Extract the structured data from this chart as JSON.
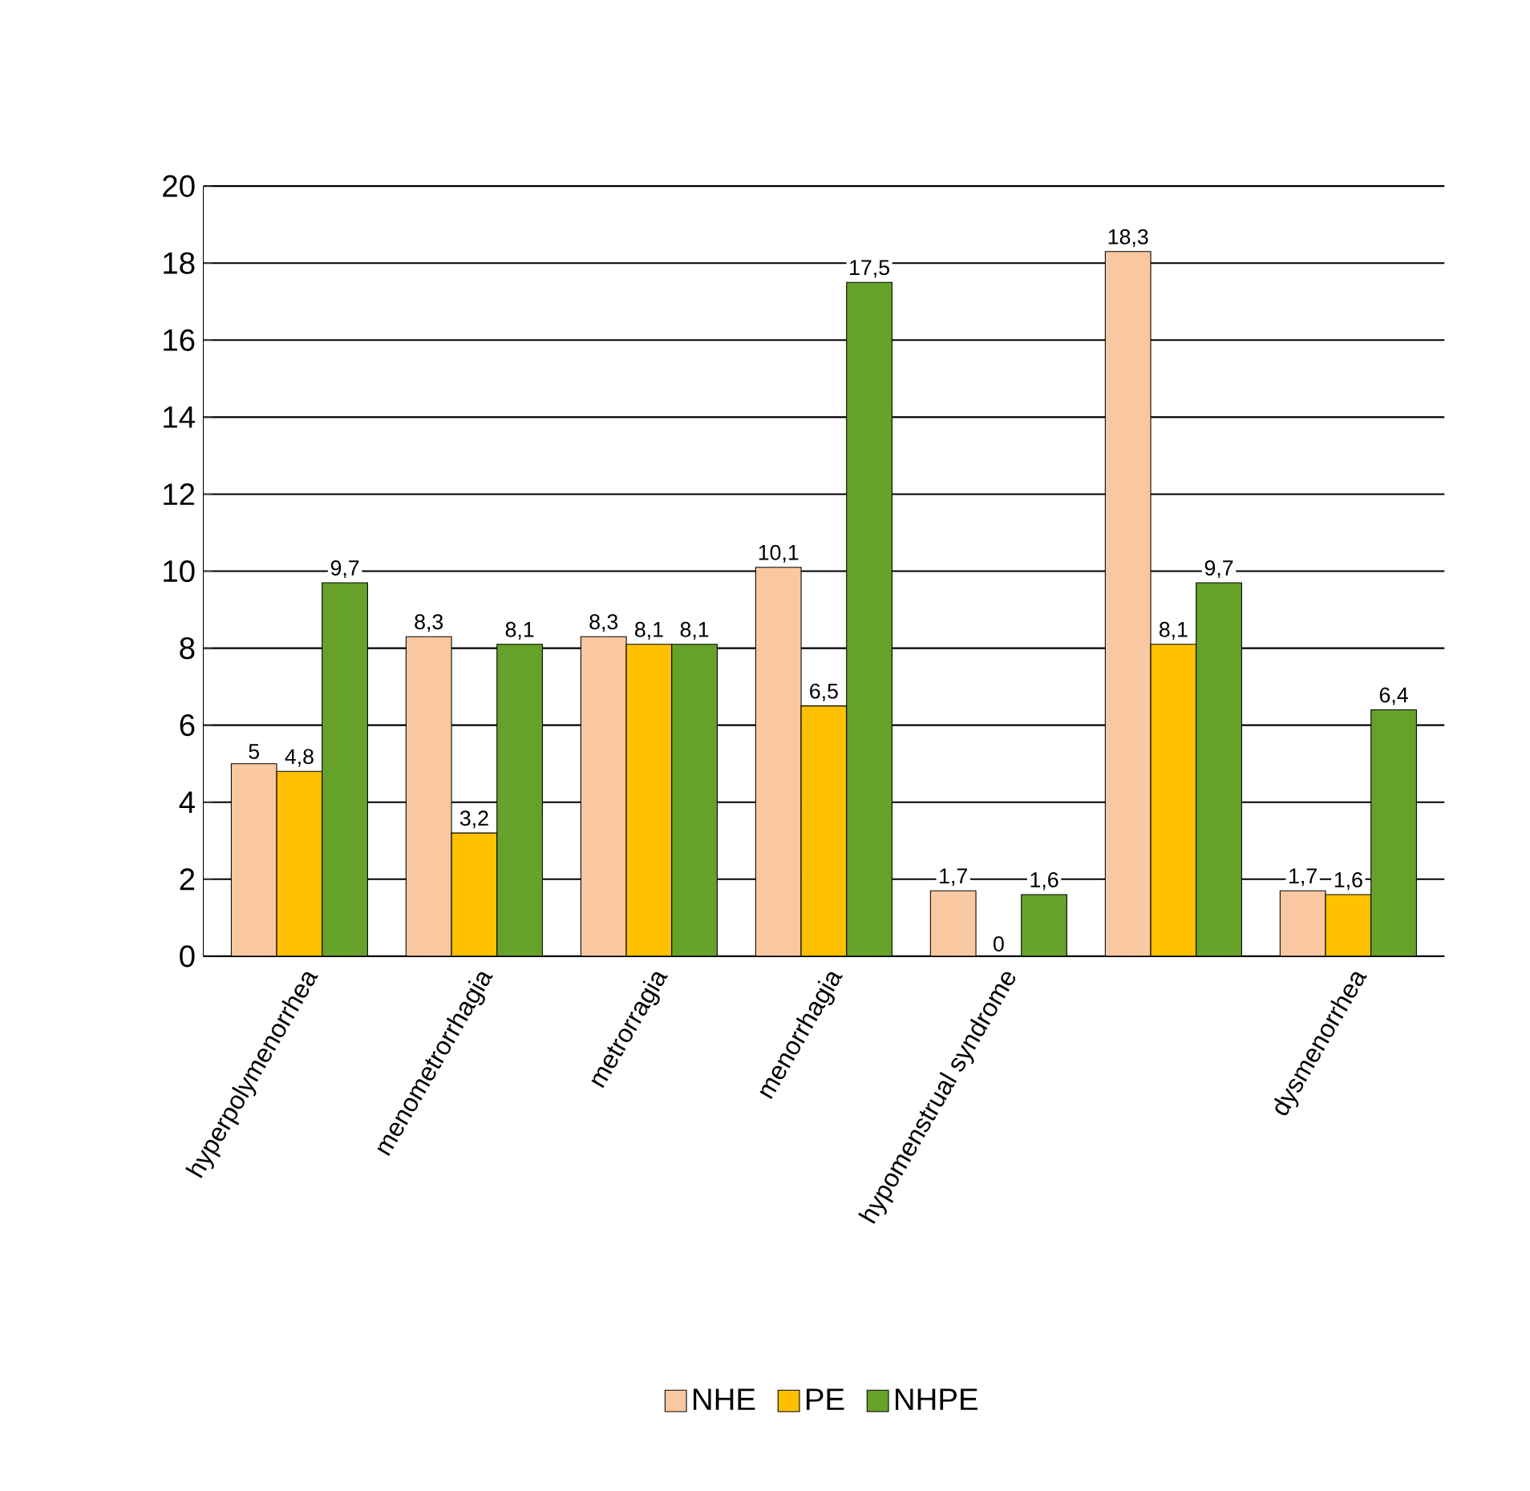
{
  "chart_data": {
    "type": "bar",
    "categories": [
      "hyperpolymenorrhea",
      "menometrorrhagia",
      "metrorragia",
      "menorrhagia",
      "hypomenstrual syndrome",
      null,
      "dysmenorrhea"
    ],
    "series": [
      {
        "name": "NHE",
        "color": "#fac8a0",
        "values": [
          5,
          8.3,
          8.3,
          10.1,
          1.7,
          18.3,
          1.7
        ],
        "value_labels": [
          "5",
          "8,3",
          "8,3",
          "10,1",
          "1,7",
          "18,3",
          "1,7"
        ]
      },
      {
        "name": "PE",
        "color": "#ffc000",
        "values": [
          4.8,
          3.2,
          8.1,
          6.5,
          0,
          8.1,
          1.6
        ],
        "value_labels": [
          "4,8",
          "3,2",
          "8,1",
          "6,5",
          "0",
          "8,1",
          "1,6"
        ]
      },
      {
        "name": "NHPE",
        "color": "#66a22a",
        "values": [
          9.7,
          8.1,
          8.1,
          17.5,
          1.6,
          9.7,
          6.4
        ],
        "value_labels": [
          "9,7",
          "8,1",
          "8,1",
          "17,5",
          "1,6",
          "9,7",
          "6,4"
        ]
      }
    ],
    "ylim": [
      0,
      20
    ],
    "yticks": [
      0,
      2,
      4,
      6,
      8,
      10,
      12,
      14,
      16,
      18,
      20
    ],
    "grid": "y",
    "legend": "bottom"
  }
}
